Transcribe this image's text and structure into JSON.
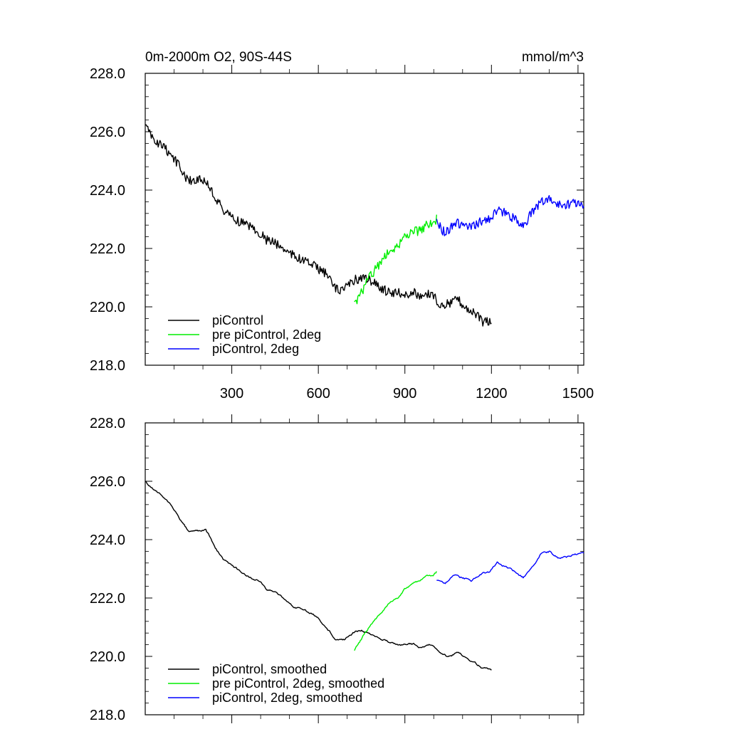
{
  "chart_data": [
    {
      "type": "line",
      "title": "0m-2000m O2, 90S-44S",
      "units": "mmol/m^3",
      "xlim": [
        0,
        1520
      ],
      "ylim": [
        218.0,
        228.0
      ],
      "xticks": [
        300,
        600,
        900,
        1200,
        1500
      ],
      "xtick_labels": [
        "300",
        "600",
        "900",
        "1200",
        "1500"
      ],
      "yticks": [
        218.0,
        220.0,
        222.0,
        224.0,
        226.0,
        228.0
      ],
      "ytick_labels": [
        "218.0",
        "220.0",
        "222.0",
        "224.0",
        "226.0",
        "228.0"
      ],
      "legend_position": "lower-left",
      "series": [
        {
          "name": "piControl",
          "color": "#000000",
          "x": [
            0,
            30,
            60,
            90,
            120,
            150,
            180,
            210,
            240,
            270,
            300,
            330,
            360,
            390,
            420,
            450,
            480,
            510,
            540,
            570,
            600,
            630,
            660,
            690,
            720,
            750,
            780,
            810,
            840,
            870,
            900,
            930,
            960,
            990,
            1020,
            1050,
            1080,
            1110,
            1140,
            1170,
            1200
          ],
          "y": [
            226.2,
            225.7,
            225.5,
            225.2,
            224.8,
            224.3,
            224.4,
            224.3,
            223.8,
            223.3,
            223.1,
            222.9,
            222.8,
            222.6,
            222.3,
            222.2,
            222.0,
            221.8,
            221.6,
            221.5,
            221.3,
            221.1,
            220.6,
            220.6,
            220.9,
            221.0,
            220.9,
            220.7,
            220.5,
            220.5,
            220.4,
            220.5,
            220.3,
            220.5,
            220.1,
            220.1,
            220.3,
            220.0,
            219.8,
            219.5,
            219.5
          ]
        },
        {
          "name": "pre piControl, 2deg",
          "color": "#00ee00",
          "x": [
            725,
            750,
            775,
            800,
            825,
            850,
            875,
            900,
            925,
            950,
            975,
            1000,
            1010
          ],
          "y": [
            220.1,
            220.5,
            221.0,
            221.3,
            221.7,
            221.9,
            222.1,
            222.4,
            222.6,
            222.6,
            222.8,
            222.9,
            223.0
          ]
        },
        {
          "name": "piControl, 2deg",
          "color": "#0000ff",
          "x": [
            1010,
            1040,
            1070,
            1100,
            1130,
            1160,
            1190,
            1220,
            1250,
            1280,
            1310,
            1340,
            1370,
            1400,
            1430,
            1460,
            1490,
            1520
          ],
          "y": [
            222.9,
            222.5,
            222.9,
            222.8,
            222.7,
            222.9,
            223.0,
            223.3,
            223.2,
            223.0,
            222.8,
            223.2,
            223.6,
            223.7,
            223.5,
            223.5,
            223.6,
            223.4
          ]
        }
      ]
    },
    {
      "type": "line",
      "xlim": [
        0,
        1520
      ],
      "ylim": [
        218.0,
        228.0
      ],
      "xticks": [
        300,
        600,
        900,
        1200,
        1500
      ],
      "yticks": [
        218.0,
        220.0,
        222.0,
        224.0,
        226.0,
        228.0
      ],
      "ytick_labels": [
        "218.0",
        "220.0",
        "222.0",
        "224.0",
        "226.0",
        "228.0"
      ],
      "legend_position": "lower-left",
      "series": [
        {
          "name": "piControl, smoothed",
          "color": "#000000",
          "x": [
            0,
            30,
            60,
            90,
            120,
            150,
            180,
            210,
            240,
            270,
            300,
            330,
            360,
            390,
            420,
            450,
            480,
            510,
            540,
            570,
            600,
            630,
            660,
            690,
            720,
            750,
            780,
            810,
            840,
            870,
            900,
            930,
            960,
            990,
            1020,
            1050,
            1080,
            1110,
            1140,
            1170,
            1200
          ],
          "y": [
            226.0,
            225.7,
            225.5,
            225.2,
            224.7,
            224.3,
            224.3,
            224.3,
            223.8,
            223.3,
            223.1,
            222.9,
            222.7,
            222.6,
            222.3,
            222.2,
            222.0,
            221.7,
            221.6,
            221.5,
            221.3,
            221.0,
            220.6,
            220.6,
            220.8,
            220.9,
            220.8,
            220.6,
            220.5,
            220.4,
            220.4,
            220.4,
            220.3,
            220.4,
            220.1,
            220.0,
            220.1,
            220.0,
            219.8,
            219.6,
            219.5
          ]
        },
        {
          "name": "pre piControl, 2deg, smoothed",
          "color": "#00ee00",
          "x": [
            725,
            750,
            775,
            800,
            825,
            850,
            875,
            900,
            925,
            950,
            975,
            1000,
            1010
          ],
          "y": [
            220.2,
            220.6,
            221.0,
            221.3,
            221.6,
            221.9,
            222.0,
            222.3,
            222.5,
            222.6,
            222.7,
            222.8,
            222.9
          ]
        },
        {
          "name": "piControl, 2deg, smoothed",
          "color": "#0000ff",
          "x": [
            1010,
            1040,
            1070,
            1100,
            1130,
            1160,
            1190,
            1220,
            1250,
            1280,
            1310,
            1340,
            1370,
            1400,
            1430,
            1460,
            1490,
            1520
          ],
          "y": [
            222.6,
            222.5,
            222.8,
            222.7,
            222.6,
            222.8,
            222.9,
            223.2,
            223.1,
            222.9,
            222.7,
            223.0,
            223.5,
            223.6,
            223.4,
            223.4,
            223.5,
            223.5
          ]
        }
      ]
    }
  ]
}
